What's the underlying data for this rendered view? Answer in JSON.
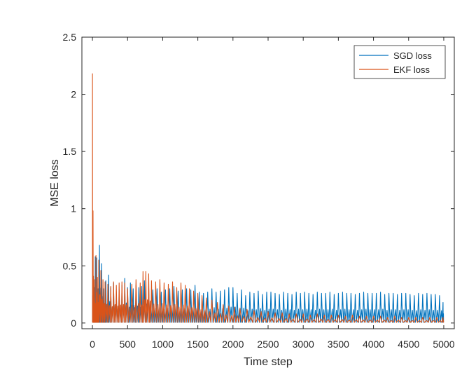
{
  "chart_data": {
    "type": "line",
    "title": "",
    "xlabel": "Time step",
    "ylabel": "MSE loss",
    "xlim": [
      -150,
      5150
    ],
    "ylim": [
      -0.05,
      2.5
    ],
    "xticks": [
      0,
      500,
      1000,
      1500,
      2000,
      2500,
      3000,
      3500,
      4000,
      4500,
      5000
    ],
    "xtick_labels": [
      "0",
      "500",
      "1000",
      "1500",
      "2000",
      "2500",
      "3000",
      "3500",
      "4000",
      "4500",
      "5000"
    ],
    "yticks": [
      0,
      0.5,
      1,
      1.5,
      2,
      2.5
    ],
    "ytick_labels": [
      "0",
      "0.5",
      "1",
      "1.5",
      "2",
      "2.5"
    ],
    "grid": false,
    "legend_position": "top-right",
    "series": [
      {
        "name": "SGD loss",
        "color": "#0072BD",
        "spike_x": [
          0,
          20,
          40,
          60,
          80,
          100,
          130,
          160,
          190,
          230,
          260,
          300,
          340,
          380,
          420,
          460,
          500,
          540,
          580,
          620,
          660,
          700,
          740,
          800,
          860,
          920,
          980,
          1040,
          1100,
          1160,
          1220,
          1280,
          1340,
          1400,
          1460,
          1520,
          1580,
          1640,
          1700,
          1760,
          1820,
          1880,
          1940,
          2000,
          2060,
          2120,
          2180,
          2240,
          2300,
          2360,
          2420,
          2480,
          2540,
          2600,
          2660,
          2720,
          2780,
          2840,
          2900,
          2960,
          3020,
          3080,
          3140,
          3200,
          3260,
          3320,
          3380,
          3440,
          3500,
          3560,
          3620,
          3680,
          3740,
          3800,
          3860,
          3920,
          3980,
          4040,
          4100,
          4160,
          4220,
          4280,
          4340,
          4400,
          4460,
          4520,
          4580,
          4640,
          4700,
          4760,
          4820,
          4880,
          4940,
          4990
        ],
        "spike_y": [
          0.24,
          0.31,
          0.58,
          0.57,
          0.3,
          0.68,
          0.52,
          0.3,
          0.37,
          0.42,
          0.31,
          0.35,
          0.27,
          0.29,
          0.33,
          0.39,
          0.31,
          0.35,
          0.3,
          0.33,
          0.31,
          0.32,
          0.37,
          0.32,
          0.29,
          0.3,
          0.27,
          0.29,
          0.3,
          0.32,
          0.28,
          0.29,
          0.3,
          0.29,
          0.33,
          0.27,
          0.26,
          0.27,
          0.3,
          0.27,
          0.28,
          0.29,
          0.31,
          0.31,
          0.26,
          0.29,
          0.24,
          0.27,
          0.26,
          0.28,
          0.25,
          0.27,
          0.27,
          0.26,
          0.25,
          0.27,
          0.26,
          0.25,
          0.27,
          0.26,
          0.27,
          0.26,
          0.25,
          0.27,
          0.26,
          0.26,
          0.27,
          0.25,
          0.26,
          0.27,
          0.26,
          0.26,
          0.25,
          0.26,
          0.27,
          0.26,
          0.26,
          0.26,
          0.27,
          0.25,
          0.26,
          0.26,
          0.25,
          0.26,
          0.26,
          0.25,
          0.24,
          0.26,
          0.25,
          0.26,
          0.25,
          0.25,
          0.24,
          0.18
        ]
      },
      {
        "name": "EKF loss",
        "color": "#D95319",
        "spike_x": [
          0,
          15,
          30,
          50,
          70,
          90,
          120,
          150,
          180,
          220,
          260,
          300,
          340,
          380,
          420,
          460,
          500,
          560,
          620,
          680,
          720,
          760,
          800,
          840,
          900,
          960,
          1020,
          1080,
          1140,
          1200,
          1260,
          1320,
          1380,
          1440,
          1500,
          1560,
          1620,
          1700,
          1780,
          1860,
          1940,
          2020,
          2100,
          2200,
          2300,
          2400,
          2500,
          2600,
          2700,
          2800,
          2900,
          3000,
          3100,
          3200,
          3300,
          3400,
          3500,
          3600,
          3700,
          3800,
          3900,
          4000,
          4100,
          4200,
          4300,
          4400,
          4500,
          4600,
          4700,
          4800,
          4900,
          4990
        ],
        "spike_y": [
          2.18,
          0.41,
          0.38,
          0.59,
          0.4,
          0.55,
          0.46,
          0.38,
          0.36,
          0.34,
          0.32,
          0.36,
          0.33,
          0.35,
          0.36,
          0.35,
          0.3,
          0.34,
          0.38,
          0.35,
          0.45,
          0.45,
          0.43,
          0.37,
          0.36,
          0.38,
          0.35,
          0.34,
          0.36,
          0.31,
          0.35,
          0.33,
          0.3,
          0.28,
          0.26,
          0.24,
          0.22,
          0.2,
          0.18,
          0.16,
          0.15,
          0.14,
          0.13,
          0.12,
          0.11,
          0.1,
          0.1,
          0.09,
          0.09,
          0.08,
          0.08,
          0.08,
          0.07,
          0.08,
          0.07,
          0.07,
          0.07,
          0.06,
          0.07,
          0.06,
          0.06,
          0.06,
          0.06,
          0.05,
          0.06,
          0.05,
          0.05,
          0.05,
          0.05,
          0.05,
          0.05,
          0.05
        ]
      }
    ]
  }
}
